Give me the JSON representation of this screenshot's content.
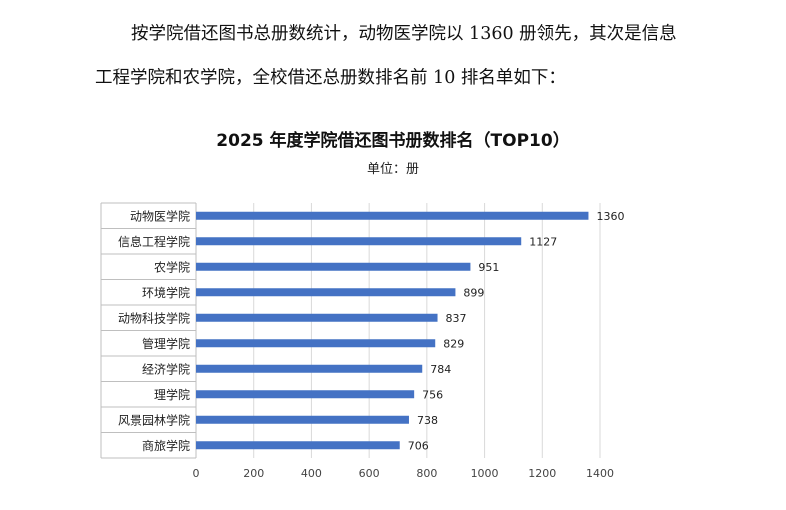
{
  "document": {
    "paragraph_line1": "按学院借还图书总册数统计，动物医学院以 1360 册领先，其次是信息",
    "paragraph_line2": "工程学院和农学院，全校借还总册数排名前 10 排名单如下："
  },
  "chart_data": {
    "type": "bar",
    "orientation": "horizontal",
    "title": "2025 年度学院借还图书册数排名（TOP10）",
    "subtitle": "单位：册",
    "categories": [
      "动物医学院",
      "信息工程学院",
      "农学院",
      "环境学院",
      "动物科技学院",
      "管理学院",
      "经济学院",
      "理学院",
      "风景园林学院",
      "商旅学院"
    ],
    "values": [
      1360,
      1127,
      951,
      899,
      837,
      829,
      784,
      756,
      738,
      706
    ],
    "x_ticks": [
      0,
      200,
      400,
      600,
      800,
      1000,
      1200,
      1400
    ],
    "xlim": [
      0,
      1400
    ],
    "grid": "vertical",
    "legend": "none",
    "bar_color": "#4472C4",
    "grid_color": "#d9d9d9",
    "label_color": "#222222"
  }
}
